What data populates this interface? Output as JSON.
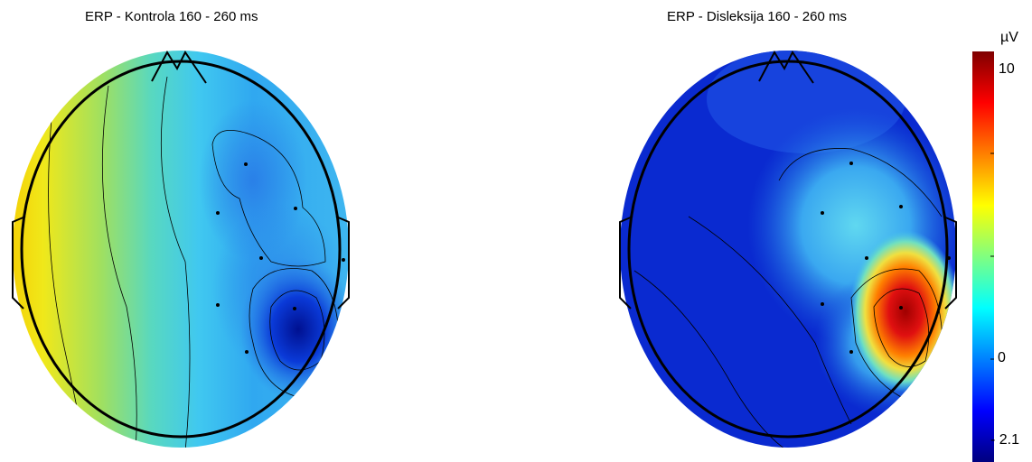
{
  "maps": [
    {
      "title": "ERP - Kontrola 160 - 260 ms",
      "colors": {
        "frontal_left": "#8fdc6a",
        "left_edge": "#f0d80a",
        "mid": "#4cc8e8",
        "right_blue": "#2c7de8",
        "deep_blue": "#0a2fc8",
        "rim": "#000000"
      }
    },
    {
      "title": "ERP - Disleksija 160 - 260 ms",
      "colors": {
        "background_blue": "#0a2ad0",
        "light_blue": "#3aaaf0",
        "cyan": "#5adcf0",
        "hotspot_red": "#c00000",
        "hotspot_orange": "#ff7a00",
        "rim": "#000000"
      }
    }
  ],
  "colorbar": {
    "unit": "µV",
    "tick_max": "10",
    "tick_zero": "0",
    "tick_min": "- 2.1",
    "gradient": [
      "#00007f",
      "#0000ff",
      "#0080ff",
      "#00ffff",
      "#80ff80",
      "#ffff00",
      "#ff8000",
      "#ff0000",
      "#7f0000"
    ]
  }
}
